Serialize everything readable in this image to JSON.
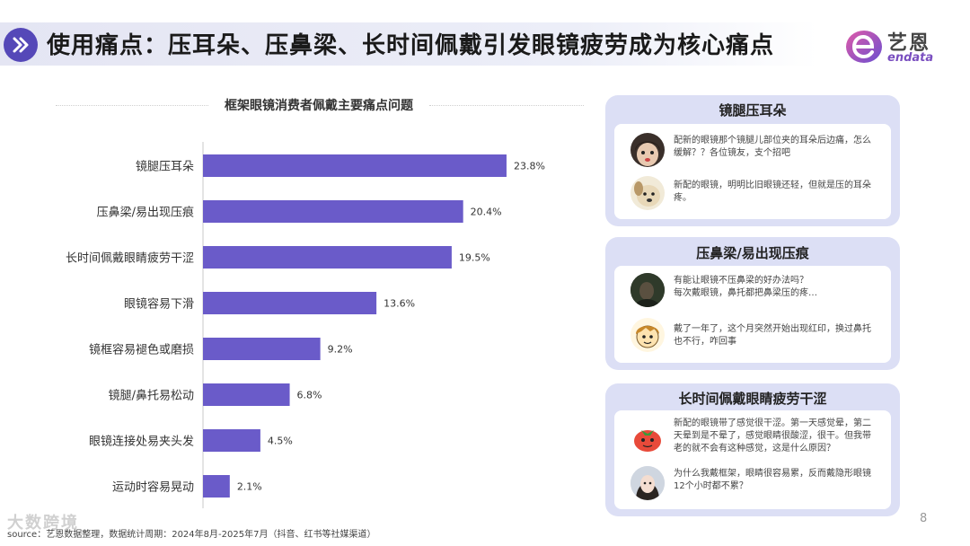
{
  "header": {
    "title": "使用痛点：压耳朵、压鼻梁、长时间佩戴引发眼镜疲劳成为核心痛点",
    "brand_cn": "艺恩",
    "brand_en": "endata"
  },
  "chart_data": {
    "type": "bar",
    "orientation": "horizontal",
    "title": "框架眼镜消费者佩戴主要痛点问题",
    "categories": [
      "镜腿压耳朵",
      "压鼻梁/易出现压痕",
      "长时间佩戴眼睛疲劳干涩",
      "眼镜容易下滑",
      "镜框容易褪色或磨损",
      "镜腿/鼻托易松动",
      "眼镜连接处易夹头发",
      "运动时容易晃动"
    ],
    "values": [
      23.8,
      20.4,
      19.5,
      13.6,
      9.2,
      6.8,
      4.5,
      2.1
    ],
    "value_labels": [
      "23.8%",
      "20.4%",
      "19.5%",
      "13.6%",
      "9.2%",
      "6.8%",
      "4.5%",
      "2.1%"
    ],
    "xlim": [
      0,
      25
    ],
    "bar_color": "#6a5bc9",
    "grid": false,
    "legend": "none"
  },
  "panels": [
    {
      "title": "镜腿压耳朵",
      "comments": [
        {
          "avatar": "girl-face-icon",
          "text": "配新的眼镜那个镜腿儿部位夹的耳朵后边痛，怎么缓解？？各位镜友，支个招吧"
        },
        {
          "avatar": "puppy-icon",
          "text": "新配的眼镜，明明比旧眼镜还轻，但就是压的耳朵疼。"
        }
      ]
    },
    {
      "title": "压鼻梁/易出现压痕",
      "comments": [
        {
          "avatar": "dark-photo-icon",
          "text": "有能让眼镜不压鼻梁的好办法吗？\n每次戴眼镜，鼻托都把鼻梁压的疼…"
        },
        {
          "avatar": "cartoon-boy-icon",
          "text": "戴了一年了，这个月突然开始出现红印，换过鼻托也不行，咋回事"
        }
      ]
    },
    {
      "title": "长时间佩戴眼睛疲劳干涩",
      "comments": [
        {
          "avatar": "tomato-icon",
          "text": "新配的眼镜带了感觉很干涩。第一天感觉晕，第二天晕到是不晕了，感觉眼睛很酸涩，很干。但我带老的就不会有这种感觉，这是什么原因？"
        },
        {
          "avatar": "girl-portrait-icon",
          "text": "为什么我戴框架，眼睛很容易累，反而戴隐形眼镜12个小时都不累？"
        }
      ]
    }
  ],
  "page_number": "8",
  "footer": "source：艺恩数据整理，数据统计周期：2024年8月-2025年7月（抖音、红书等社媒渠道）",
  "watermark": "大数跨境",
  "colors": {
    "accent": "#5548b8",
    "bar": "#6a5bc9",
    "panel": "#dcdff5"
  }
}
